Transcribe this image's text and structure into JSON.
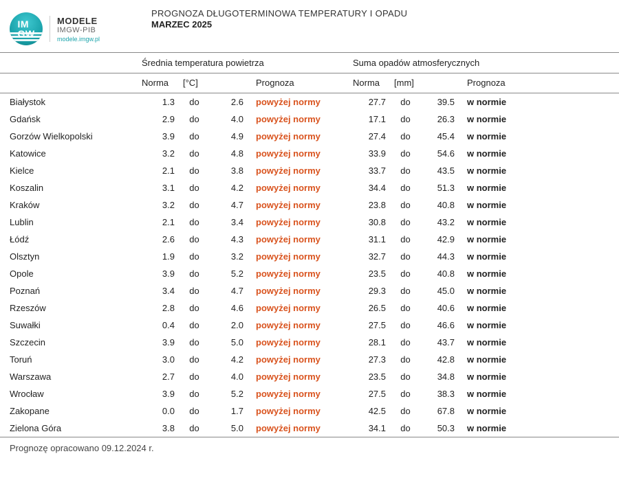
{
  "logo": {
    "mark": "IM\nGW",
    "line1": "MODELE",
    "line2": "IMGW-PIB",
    "line3": "modele.imgw.pl"
  },
  "title": {
    "line1": "PROGNOZA DŁUGOTERMINOWA TEMPERATURY I OPADU",
    "line2": "MARZEC 2025"
  },
  "sections": {
    "temp": "Średnia temperatura powietrza",
    "precip": "Suma opadów atmosferycznych"
  },
  "cols": {
    "norma": "Norma",
    "unit_c": "[°C]",
    "unit_mm": "[mm]",
    "prognoza": "Prognoza",
    "do": "do"
  },
  "prognoza_labels": {
    "above": "powyżej normy",
    "normal": "w normie"
  },
  "colors": {
    "above": "#d9531e",
    "normal": "#222222",
    "border": "#888888",
    "teal": "#1aa3ab"
  },
  "rows": [
    {
      "city": "Białystok",
      "t_lo": "1.3",
      "t_hi": "2.6",
      "t_prog": "above",
      "p_lo": "27.7",
      "p_hi": "39.5",
      "p_prog": "normal"
    },
    {
      "city": "Gdańsk",
      "t_lo": "2.9",
      "t_hi": "4.0",
      "t_prog": "above",
      "p_lo": "17.1",
      "p_hi": "26.3",
      "p_prog": "normal"
    },
    {
      "city": "Gorzów Wielkopolski",
      "t_lo": "3.9",
      "t_hi": "4.9",
      "t_prog": "above",
      "p_lo": "27.4",
      "p_hi": "45.4",
      "p_prog": "normal"
    },
    {
      "city": "Katowice",
      "t_lo": "3.2",
      "t_hi": "4.8",
      "t_prog": "above",
      "p_lo": "33.9",
      "p_hi": "54.6",
      "p_prog": "normal"
    },
    {
      "city": "Kielce",
      "t_lo": "2.1",
      "t_hi": "3.8",
      "t_prog": "above",
      "p_lo": "33.7",
      "p_hi": "43.5",
      "p_prog": "normal"
    },
    {
      "city": "Koszalin",
      "t_lo": "3.1",
      "t_hi": "4.2",
      "t_prog": "above",
      "p_lo": "34.4",
      "p_hi": "51.3",
      "p_prog": "normal"
    },
    {
      "city": "Kraków",
      "t_lo": "3.2",
      "t_hi": "4.7",
      "t_prog": "above",
      "p_lo": "23.8",
      "p_hi": "40.8",
      "p_prog": "normal"
    },
    {
      "city": "Lublin",
      "t_lo": "2.1",
      "t_hi": "3.4",
      "t_prog": "above",
      "p_lo": "30.8",
      "p_hi": "43.2",
      "p_prog": "normal"
    },
    {
      "city": "Łódź",
      "t_lo": "2.6",
      "t_hi": "4.3",
      "t_prog": "above",
      "p_lo": "31.1",
      "p_hi": "42.9",
      "p_prog": "normal"
    },
    {
      "city": "Olsztyn",
      "t_lo": "1.9",
      "t_hi": "3.2",
      "t_prog": "above",
      "p_lo": "32.7",
      "p_hi": "44.3",
      "p_prog": "normal"
    },
    {
      "city": "Opole",
      "t_lo": "3.9",
      "t_hi": "5.2",
      "t_prog": "above",
      "p_lo": "23.5",
      "p_hi": "40.8",
      "p_prog": "normal"
    },
    {
      "city": "Poznań",
      "t_lo": "3.4",
      "t_hi": "4.7",
      "t_prog": "above",
      "p_lo": "29.3",
      "p_hi": "45.0",
      "p_prog": "normal"
    },
    {
      "city": "Rzeszów",
      "t_lo": "2.8",
      "t_hi": "4.6",
      "t_prog": "above",
      "p_lo": "26.5",
      "p_hi": "40.6",
      "p_prog": "normal"
    },
    {
      "city": "Suwałki",
      "t_lo": "0.4",
      "t_hi": "2.0",
      "t_prog": "above",
      "p_lo": "27.5",
      "p_hi": "46.6",
      "p_prog": "normal"
    },
    {
      "city": "Szczecin",
      "t_lo": "3.9",
      "t_hi": "5.0",
      "t_prog": "above",
      "p_lo": "28.1",
      "p_hi": "43.7",
      "p_prog": "normal"
    },
    {
      "city": "Toruń",
      "t_lo": "3.0",
      "t_hi": "4.2",
      "t_prog": "above",
      "p_lo": "27.3",
      "p_hi": "42.8",
      "p_prog": "normal"
    },
    {
      "city": "Warszawa",
      "t_lo": "2.7",
      "t_hi": "4.0",
      "t_prog": "above",
      "p_lo": "23.5",
      "p_hi": "34.8",
      "p_prog": "normal"
    },
    {
      "city": "Wrocław",
      "t_lo": "3.9",
      "t_hi": "5.2",
      "t_prog": "above",
      "p_lo": "27.5",
      "p_hi": "38.3",
      "p_prog": "normal"
    },
    {
      "city": "Zakopane",
      "t_lo": "0.0",
      "t_hi": "1.7",
      "t_prog": "above",
      "p_lo": "42.5",
      "p_hi": "67.8",
      "p_prog": "normal"
    },
    {
      "city": "Zielona Góra",
      "t_lo": "3.8",
      "t_hi": "5.0",
      "t_prog": "above",
      "p_lo": "34.1",
      "p_hi": "50.3",
      "p_prog": "normal"
    }
  ],
  "footer": "Prognozę opracowano 09.12.2024 r."
}
